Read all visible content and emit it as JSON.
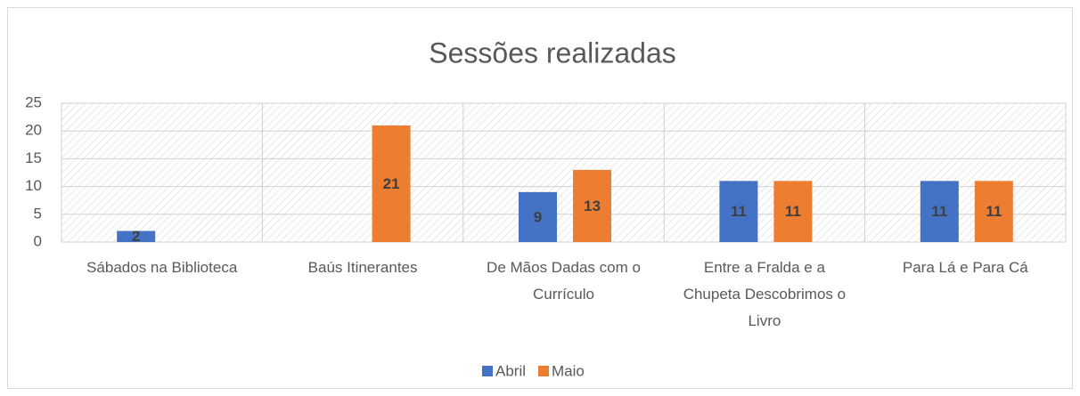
{
  "chart_data": {
    "type": "bar",
    "title": "Sessões realizadas",
    "categories": [
      "Sábados na Biblioteca",
      "Baús Itinerantes",
      "De Mãos Dadas com o Currículo",
      "Entre a Fralda e a Chupeta Descobrimos o Livro",
      "Para Lá e Para Cá"
    ],
    "series": [
      {
        "name": "Abril",
        "color": "#4472c4",
        "values": [
          2,
          null,
          9,
          11,
          11
        ]
      },
      {
        "name": "Maio",
        "color": "#ed7d31",
        "values": [
          null,
          21,
          13,
          11,
          11
        ]
      }
    ],
    "ylim": [
      0,
      25
    ],
    "yticks": [
      0,
      5,
      10,
      15,
      20,
      25
    ],
    "grid": true,
    "legend": "bottom"
  }
}
